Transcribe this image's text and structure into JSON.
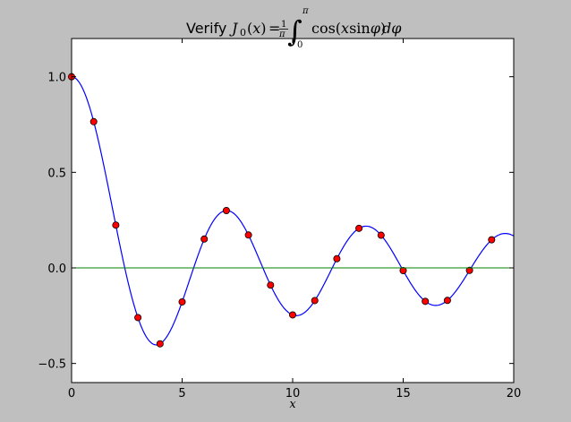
{
  "chart_data": {
    "type": "line",
    "title": {
      "prefix": "Verify",
      "expression": "J_0(x) = (1/π) ∫_0^π cos(x sin φ) dφ"
    },
    "xlabel": "x",
    "ylabel": "",
    "xlim": [
      0,
      20
    ],
    "ylim": [
      -0.6,
      1.2
    ],
    "x_ticks": [
      0,
      5,
      10,
      15,
      20
    ],
    "x_tick_labels": [
      "0",
      "5",
      "10",
      "15",
      "20"
    ],
    "y_ticks": [
      -0.5,
      0.0,
      0.5,
      1.0
    ],
    "y_tick_labels": [
      "−0.5",
      "0.0",
      "0.5",
      "1.0"
    ],
    "grid": false,
    "series": [
      {
        "kind": "line",
        "color": "#0000ff",
        "function": "bessel_j0",
        "x_range": [
          0,
          20
        ]
      },
      {
        "kind": "markers",
        "color": "#ff0000",
        "x": [
          0,
          1,
          2,
          3,
          4,
          5,
          6,
          7,
          8,
          9,
          10,
          11,
          12,
          13,
          14,
          15,
          16,
          17,
          18,
          19
        ],
        "values": [
          1.0,
          0.765,
          0.224,
          -0.26,
          -0.397,
          -0.178,
          0.151,
          0.3,
          0.172,
          -0.09,
          -0.246,
          -0.171,
          0.048,
          0.207,
          0.171,
          -0.014,
          -0.175,
          -0.17,
          -0.013,
          0.147
        ]
      },
      {
        "kind": "hline",
        "color": "#008000",
        "value": 0
      }
    ]
  }
}
